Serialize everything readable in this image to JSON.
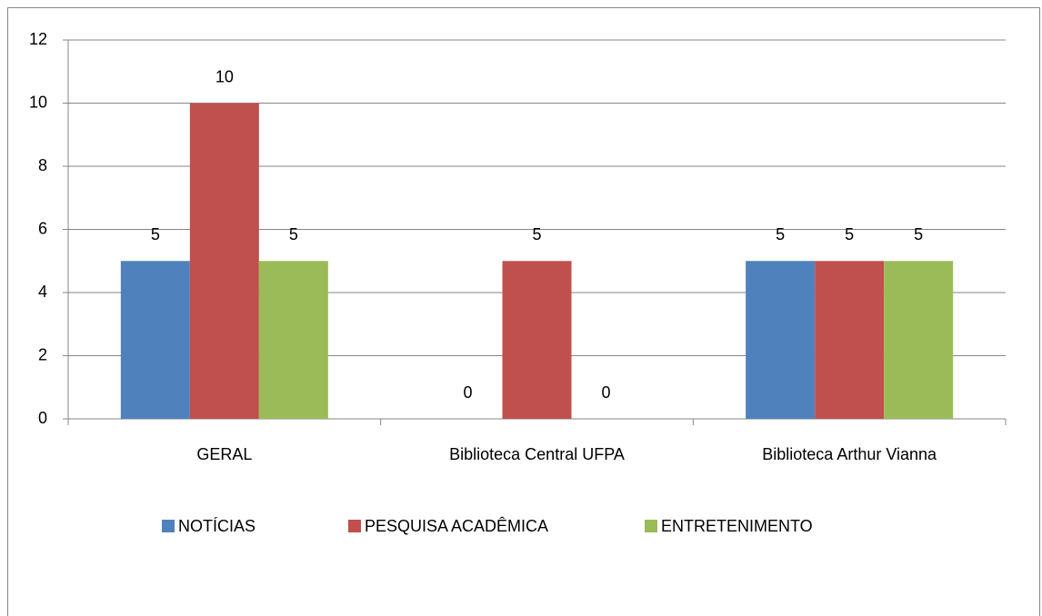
{
  "chart_data": {
    "type": "bar",
    "categories": [
      "GERAL",
      "Biblioteca Central UFPA",
      "Biblioteca Arthur Vianna"
    ],
    "series": [
      {
        "name": "NOTÍCIAS",
        "color": "#4f81bd",
        "values": [
          5,
          0,
          5
        ]
      },
      {
        "name": "PESQUISA ACADÊMICA",
        "color": "#c0504d",
        "values": [
          10,
          5,
          5
        ]
      },
      {
        "name": "ENTRETENIMENTO",
        "color": "#9bbb59",
        "values": [
          5,
          0,
          5
        ]
      }
    ],
    "ylim": [
      0,
      12
    ],
    "yticks": [
      0,
      2,
      4,
      6,
      8,
      10,
      12
    ],
    "grid": true,
    "legend": "bottom"
  }
}
